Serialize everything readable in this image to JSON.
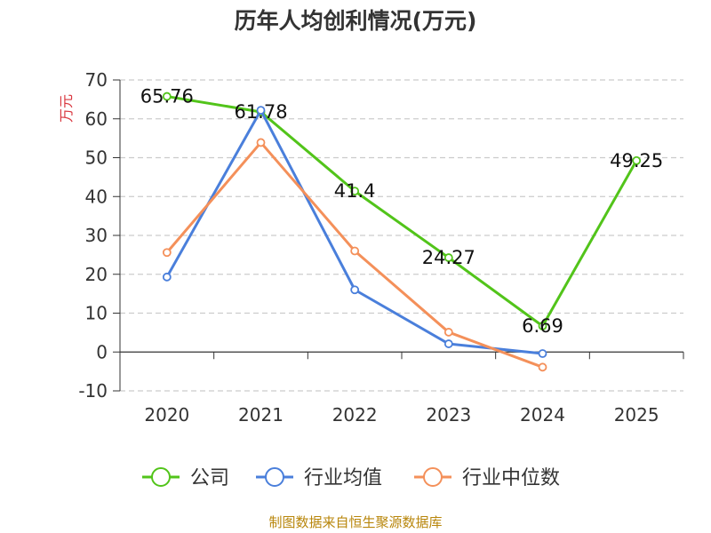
{
  "chart_data": {
    "type": "line",
    "title": "历年人均创利情况(万元)",
    "ylabel": "万元",
    "xlabel": "",
    "categories": [
      "2020",
      "2021",
      "2022",
      "2023",
      "2024",
      "2025"
    ],
    "ylim": [
      -10,
      70
    ],
    "yticks": [
      "-10",
      "0",
      "10",
      "20",
      "30",
      "40",
      "50",
      "60",
      "70"
    ],
    "grid": true,
    "legend_position": "bottom",
    "series": [
      {
        "name": "公司",
        "color": "#52c41a",
        "values": [
          65.76,
          61.78,
          41.4,
          24.27,
          6.69,
          49.25
        ],
        "labels": [
          "65.76",
          "61.78",
          "41.4",
          "24.27",
          "6.69",
          "49.25"
        ]
      },
      {
        "name": "行业均值",
        "color": "#4a7fdb",
        "values": [
          19.3,
          62.2,
          16.0,
          2.1,
          -0.4,
          null
        ]
      },
      {
        "name": "行业中位数",
        "color": "#f4905a",
        "values": [
          25.6,
          53.9,
          26.0,
          5.1,
          -3.9,
          null
        ]
      }
    ]
  },
  "source_note": "制图数据来自恒生聚源数据库"
}
